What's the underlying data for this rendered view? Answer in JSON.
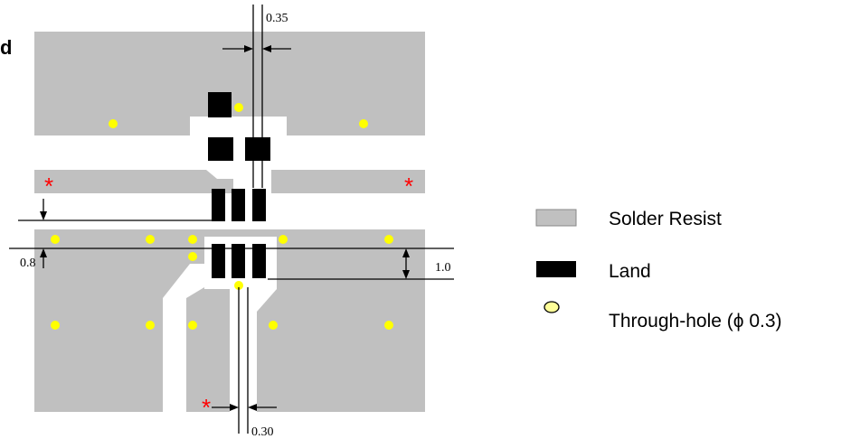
{
  "panel_label": "d",
  "dimensions": {
    "top_width": "0.35",
    "left_gap": "0.8",
    "right_gap": "1.0",
    "bottom_width": "0.30"
  },
  "marker": "*",
  "legend": {
    "solder_resist": "Solder Resist",
    "land": "Land",
    "through_hole": "Through-hole (ϕ 0.3)"
  },
  "colors": {
    "solder_resist": "#c0c0c0",
    "land": "#000000",
    "through_hole": "#ffff00",
    "legend_hole": "#ffff99",
    "marker": "#ff0000"
  }
}
